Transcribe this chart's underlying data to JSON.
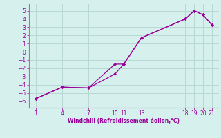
{
  "line1_x": [
    1,
    4,
    7,
    10,
    11,
    13,
    18,
    19,
    20,
    21
  ],
  "line1_y": [
    -5.7,
    -4.3,
    -4.4,
    -1.5,
    -1.5,
    1.7,
    4.0,
    5.0,
    4.5,
    3.3
  ],
  "line2_x": [
    1,
    4,
    7,
    10,
    11,
    13,
    18,
    19,
    20,
    21
  ],
  "line2_y": [
    -5.7,
    -4.3,
    -4.4,
    -2.7,
    -1.5,
    1.7,
    4.0,
    5.0,
    4.5,
    3.3
  ],
  "color": "#990099",
  "bg_color": "#d6f0ee",
  "grid_color": "#b8d8d4",
  "tick_color": "#990099",
  "spine_color": "#888888",
  "xlabel": "Windchill (Refroidissement éolien,°C)",
  "xticks": [
    1,
    4,
    7,
    10,
    11,
    13,
    18,
    19,
    20,
    21
  ],
  "yticks": [
    5,
    4,
    3,
    2,
    1,
    0,
    -1,
    -2,
    -3,
    -4,
    -5,
    -6
  ],
  "ylim": [
    -6.8,
    5.8
  ],
  "xlim": [
    0.2,
    21.8
  ]
}
